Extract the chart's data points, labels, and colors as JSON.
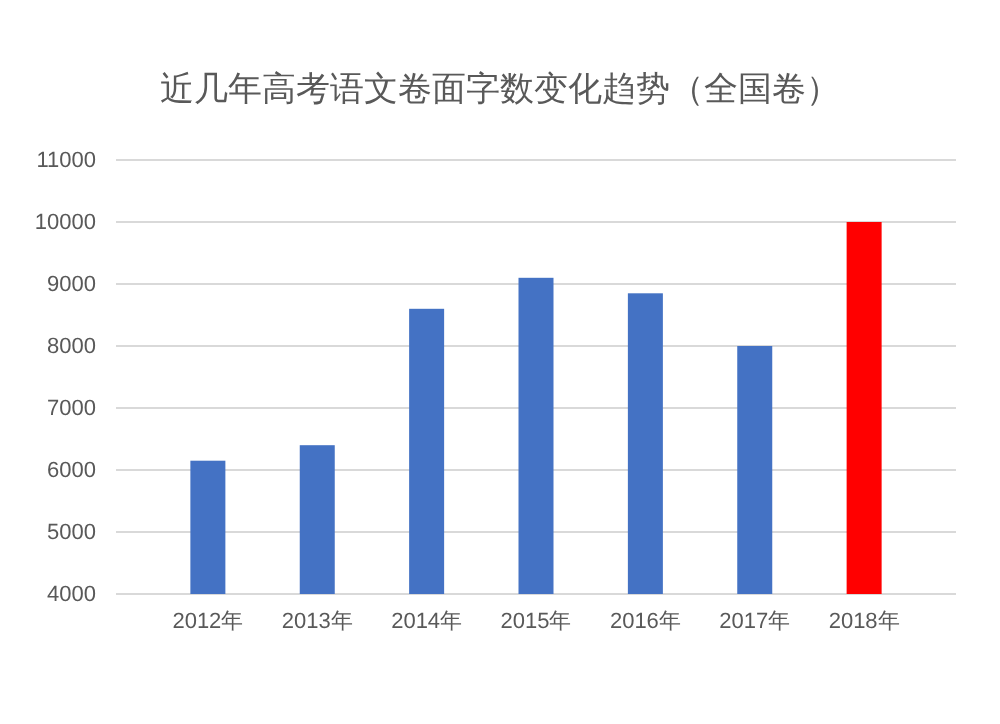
{
  "chart_data": {
    "type": "bar",
    "title": "近几年高考语文卷面字数变化趋势（全国卷）",
    "categories": [
      "2012年",
      "2013年",
      "2014年",
      "2015年",
      "2016年",
      "2017年",
      "2018年"
    ],
    "values": [
      6150,
      6400,
      8600,
      9100,
      8850,
      8000,
      10000
    ],
    "colors": [
      "#4472c4",
      "#4472c4",
      "#4472c4",
      "#4472c4",
      "#4472c4",
      "#4472c4",
      "#ff0000"
    ],
    "ylim": [
      4000,
      11000
    ],
    "yticks": [
      4000,
      5000,
      6000,
      7000,
      8000,
      9000,
      10000,
      11000
    ],
    "grid": "y"
  }
}
